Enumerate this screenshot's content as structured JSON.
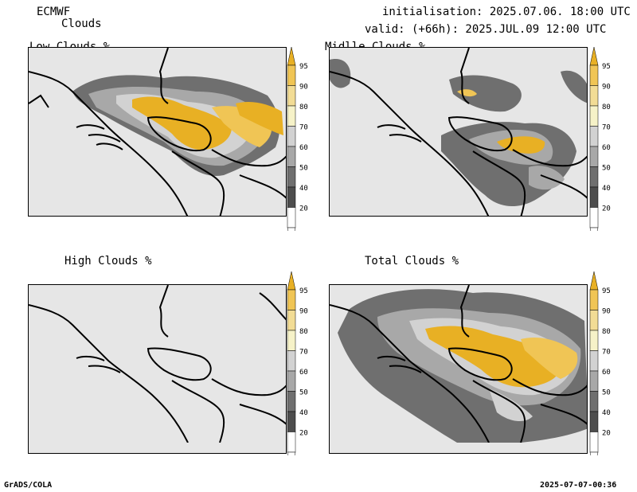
{
  "header": {
    "model": "ECMWF",
    "product": "Clouds",
    "init": "initialisation: 2025.07.06. 18:00 UTC",
    "valid": "valid: (+66h): 2025.JUL.09 12:00 UTC"
  },
  "panels": [
    {
      "title": "Low Clouds %"
    },
    {
      "title": "Midlle Clouds %"
    },
    {
      "title": "High Clouds %"
    },
    {
      "title": "Total Clouds %"
    }
  ],
  "colorbar": {
    "labels": [
      "95",
      "90",
      "80",
      "70",
      "60",
      "50",
      "40",
      "20"
    ],
    "colors": [
      "#e8b024",
      "#f0c555",
      "#f2dc95",
      "#f6f2c8",
      "#d2d2d2",
      "#a8a8a8",
      "#6f6f6f",
      "#4d4d4d",
      "#ffffff"
    ]
  },
  "footer": {
    "left": "GrADS/COLA",
    "right": "2025-07-07-00:36"
  }
}
